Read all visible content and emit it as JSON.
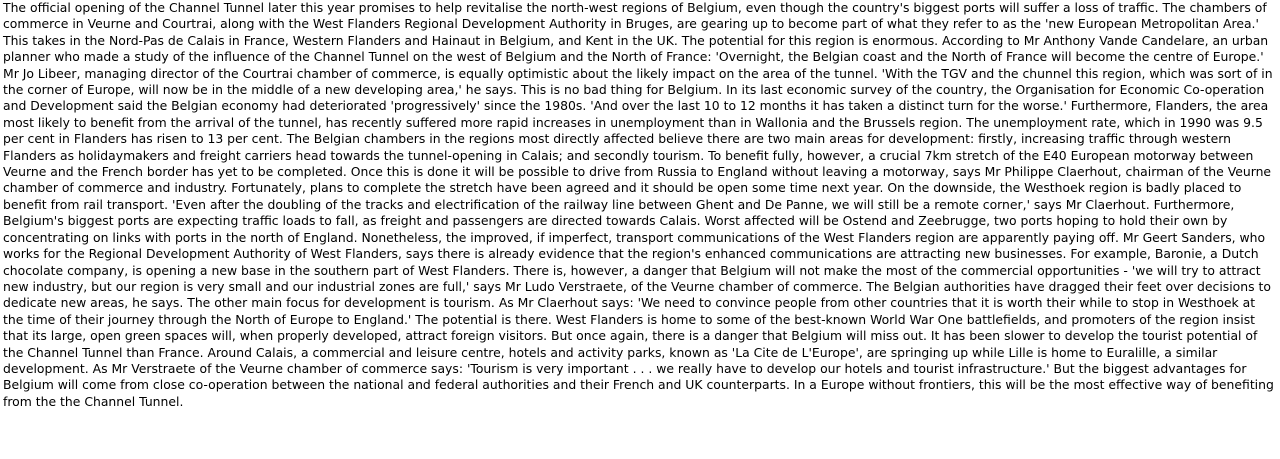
{
  "article": {
    "body": "The official opening of the Channel Tunnel later this year promises to help revitalise the north-west regions of Belgium, even though the country's biggest ports will suffer a loss of traffic. The chambers of commerce in Veurne and Courtrai, along with the West Flanders Regional Development Authority in Bruges, are gearing up to become part of what they refer to as the 'new European Metropolitan Area.' This takes in the Nord-Pas de Calais in France, Western Flanders and Hainaut in Belgium, and Kent in the UK. The potential for this region is enormous. According to Mr Anthony Vande Candelare, an urban planner who made a study of the influence of the Channel Tunnel on the west of Belgium and the North of France: 'Overnight, the Belgian coast and the North of France will become the centre of Europe.' Mr Jo Libeer, managing director of the Courtrai chamber of commerce, is equally optimistic about the likely impact on the area of the tunnel. 'With the TGV and the chunnel this region, which was sort of in the corner of Europe, will now be in the middle of a new developing area,' he says. This is no bad thing for Belgium. In its last economic survey of the country, the Organisation for Economic Co-operation and Development said the Belgian economy had deteriorated 'progressively' since the 1980s. 'And over the last 10 to 12 months it has taken a distinct turn for the worse.' Furthermore, Flanders, the area most likely to benefit from the arrival of the tunnel, has recently suffered more rapid increases in unemployment than in Wallonia and the Brussels region. The unemployment rate, which in 1990 was 9.5 per cent in Flanders has risen to 13 per cent. The Belgian chambers in the regions most directly affected believe there are two main areas for development: firstly, increasing traffic through western Flanders as holidaymakers and freight carriers head towards the tunnel-opening in Calais; and secondly tourism. To benefit fully, however, a crucial 7km stretch of the E40 European motorway between Veurne and the French border has yet to be completed. Once this is done it will be possible to drive from Russia to England without leaving a motorway, says Mr Philippe Claerhout, chairman of the Veurne chamber of commerce and industry. Fortunately, plans to complete the stretch have been agreed and it should be open some time next year. On the downside, the Westhoek region is badly placed to benefit from rail transport. 'Even after the doubling of the tracks and electrification of the railway line between Ghent and De Panne, we will still be a remote corner,' says Mr Claerhout. Furthermore, Belgium's biggest ports are expecting traffic loads to fall, as freight and passengers are directed towards Calais. Worst affected will be Ostend and Zeebrugge, two ports hoping to hold their own by concentrating on links with ports in the north of England. Nonetheless, the improved, if imperfect, transport communications of the West Flanders region are apparently paying off. Mr Geert Sanders, who works for the Regional Development Authority of West Flanders, says there is already evidence that the region's enhanced communications are attracting new businesses. For example, Baronie, a Dutch chocolate company, is opening a new base in the southern part of West Flanders. There is, however, a danger that Belgium will not make the most of the commercial opportunities - 'we will try to attract new industry, but our region is very small and our industrial zones are full,' says Mr Ludo Verstraete, of the Veurne chamber of commerce. The Belgian authorities have dragged their feet over decisions to dedicate new areas, he says. The other main focus for development is tourism. As Mr Claerhout says: 'We need to convince people from other countries that it is worth their while to stop in Westhoek at the time of their journey through the North of Europe to England.' The potential is there. West Flanders is home to some of the best-known World War One battlefields, and promoters of the region insist that its large, open green spaces will, when properly developed, attract foreign visitors. But once again, there is a danger that Belgium will miss out. It has been slower to develop the tourist potential of the Channel Tunnel than France. Around Calais, a commercial and leisure centre, hotels and activity parks, known as 'La Cite de L'Europe', are springing up while Lille is home to Euralille, a similar development. As Mr Verstraete of the Veurne chamber of commerce says: 'Tourism is very important . . . we really have to develop our hotels and tourist infrastructure.' But the biggest advantages for Belgium will come from close co-operation between the national and federal authorities and their French and UK counterparts. In a Europe without frontiers, this will be the most effective way of benefiting from the the Channel Tunnel."
  }
}
